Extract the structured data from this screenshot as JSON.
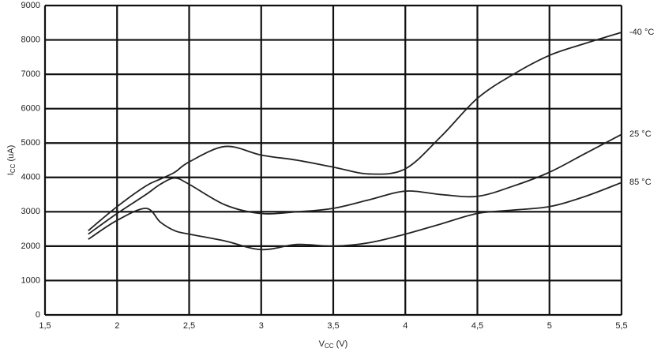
{
  "chart_data": {
    "type": "line",
    "x_label": {
      "main": "V",
      "sub": "CC",
      "rest": " (V)"
    },
    "y_label": {
      "main": "I",
      "sub": "CC",
      "rest": " (uA)"
    },
    "x": [
      1.8,
      2.0,
      2.2,
      2.3,
      2.4,
      2.5,
      2.75,
      3.0,
      3.25,
      3.5,
      3.75,
      4.0,
      4.25,
      4.5,
      4.75,
      5.0,
      5.25,
      5.5
    ],
    "series": [
      {
        "name": "-40 °C",
        "color": "#222222",
        "values": [
          2450,
          3150,
          3750,
          3950,
          4150,
          4450,
          4900,
          4650,
          4500,
          4300,
          4100,
          4250,
          5200,
          6300,
          7000,
          7550,
          7900,
          8220
        ]
      },
      {
        "name": "25 °C",
        "color": "#222222",
        "values": [
          2350,
          2950,
          3500,
          3800,
          3980,
          3800,
          3200,
          2950,
          3000,
          3100,
          3350,
          3600,
          3500,
          3450,
          3750,
          4150,
          4700,
          5250
        ]
      },
      {
        "name": "85 °C",
        "color": "#222222",
        "values": [
          2200,
          2750,
          3100,
          2700,
          2450,
          2350,
          2150,
          1900,
          2050,
          2000,
          2100,
          2350,
          2650,
          2950,
          3050,
          3150,
          3450,
          3850
        ]
      }
    ],
    "xlim": [
      1.5,
      5.5
    ],
    "xticks": [
      {
        "value": 1.5,
        "label": "1,5"
      },
      2,
      {
        "value": 2.5,
        "label": "2,5"
      },
      3,
      {
        "value": 3.5,
        "label": "3,5"
      },
      4,
      {
        "value": 4.5,
        "label": "4,5"
      },
      5,
      {
        "value": 5.5,
        "label": "5,5"
      }
    ],
    "ylim": [
      0,
      9000
    ],
    "yticks": [
      0,
      1000,
      2000,
      3000,
      4000,
      5000,
      6000,
      7000,
      8000,
      9000
    ],
    "grid": true
  }
}
